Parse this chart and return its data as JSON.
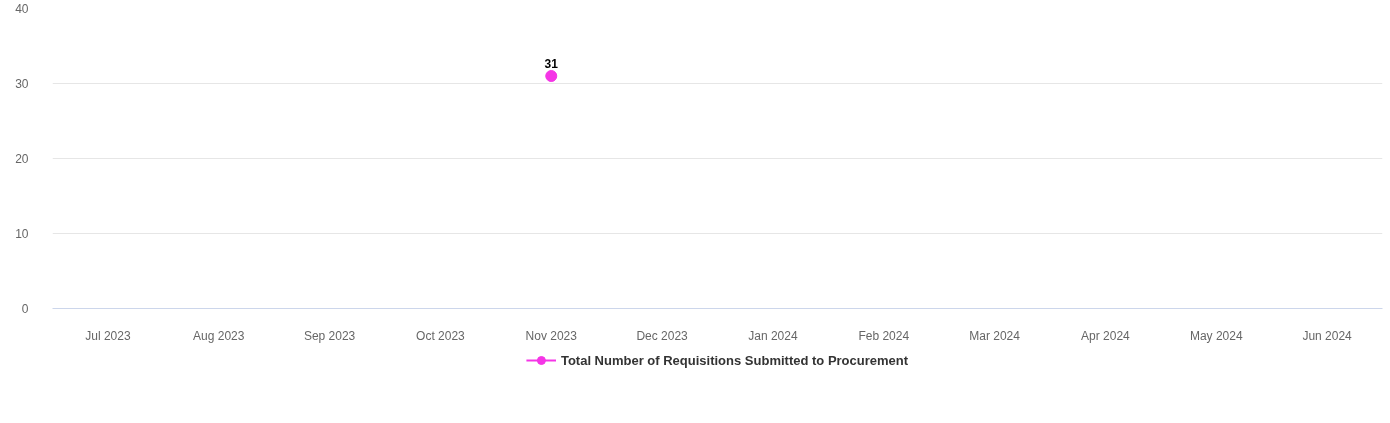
{
  "chart_data": {
    "type": "line",
    "categories": [
      "Jul 2023",
      "Aug 2023",
      "Sep 2023",
      "Oct 2023",
      "Nov 2023",
      "Dec 2023",
      "Jan 2024",
      "Feb 2024",
      "Mar 2024",
      "Apr 2024",
      "May 2024",
      "Jun 2024"
    ],
    "series": [
      {
        "name": "Total Number of Requisitions Submitted to Procurement",
        "color": "#f535e6",
        "values": [
          null,
          null,
          null,
          null,
          31,
          null,
          null,
          null,
          null,
          null,
          null,
          null
        ]
      }
    ],
    "ylim": [
      0,
      40
    ],
    "yticks": [
      0,
      10,
      20,
      30,
      40
    ],
    "grid": "y",
    "legend": "bottom",
    "marker": "circle",
    "data_labels": true
  }
}
